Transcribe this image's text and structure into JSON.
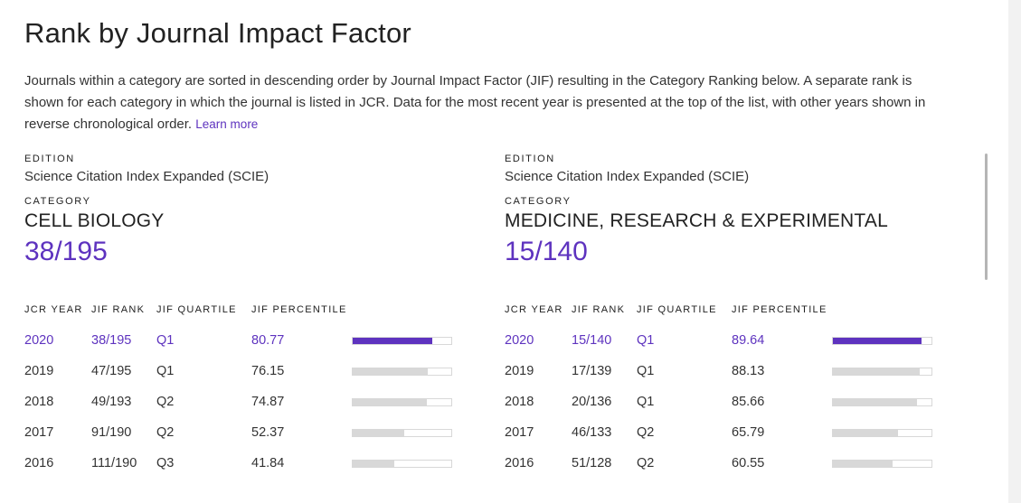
{
  "title": "Rank by Journal Impact Factor",
  "description": "Journals within a category are sorted in descending order by Journal Impact Factor (JIF) resulting in the Category Ranking below. A separate rank is shown for each category in which the journal is listed in JCR. Data for the most recent year is presented at the top of the list, with other years shown in reverse chronological order.",
  "learn_more": "Learn more",
  "accent_color": "#5e33bf",
  "headers": {
    "jcr_year": "JCR YEAR",
    "jif_rank": "JIF RANK",
    "jif_quartile": "JIF QUARTILE",
    "jif_percentile": "JIF PERCENTILE"
  },
  "panels": [
    {
      "edition_label": "EDITION",
      "edition": "Science Citation Index Expanded (SCIE)",
      "category_label": "CATEGORY",
      "category": "CELL BIOLOGY",
      "rank": "38/195",
      "rows": [
        {
          "year": "2020",
          "rank": "38/195",
          "quartile": "Q1",
          "percentile": "80.77",
          "pct": 80.77
        },
        {
          "year": "2019",
          "rank": "47/195",
          "quartile": "Q1",
          "percentile": "76.15",
          "pct": 76.15
        },
        {
          "year": "2018",
          "rank": "49/193",
          "quartile": "Q2",
          "percentile": "74.87",
          "pct": 74.87
        },
        {
          "year": "2017",
          "rank": "91/190",
          "quartile": "Q2",
          "percentile": "52.37",
          "pct": 52.37
        },
        {
          "year": "2016",
          "rank": "111/190",
          "quartile": "Q3",
          "percentile": "41.84",
          "pct": 41.84
        }
      ]
    },
    {
      "edition_label": "EDITION",
      "edition": "Science Citation Index Expanded (SCIE)",
      "category_label": "CATEGORY",
      "category": "MEDICINE, RESEARCH & EXPERIMENTAL",
      "rank": "15/140",
      "rows": [
        {
          "year": "2020",
          "rank": "15/140",
          "quartile": "Q1",
          "percentile": "89.64",
          "pct": 89.64
        },
        {
          "year": "2019",
          "rank": "17/139",
          "quartile": "Q1",
          "percentile": "88.13",
          "pct": 88.13
        },
        {
          "year": "2018",
          "rank": "20/136",
          "quartile": "Q1",
          "percentile": "85.66",
          "pct": 85.66
        },
        {
          "year": "2017",
          "rank": "46/133",
          "quartile": "Q2",
          "percentile": "65.79",
          "pct": 65.79
        },
        {
          "year": "2016",
          "rank": "51/128",
          "quartile": "Q2",
          "percentile": "60.55",
          "pct": 60.55
        }
      ]
    }
  ]
}
